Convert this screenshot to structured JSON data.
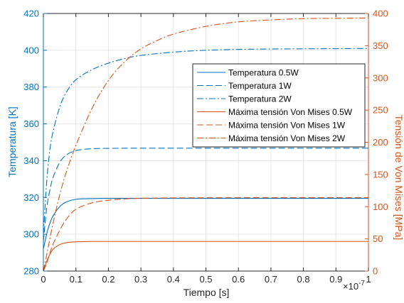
{
  "colors": {
    "left_axis": "#0072BD",
    "right_axis": "#D95319",
    "grid": "#e6e6e6",
    "frame": "#262626"
  },
  "chart_data": {
    "type": "line",
    "xlabel": "Tiempo [s]",
    "x_exponent_label": "×10",
    "x_exponent_power": "-7",
    "ylabel_left": "Temperatura [K]",
    "ylabel_right": "Tensión de Von Mises [MPa]",
    "xlim": [
      0,
      1
    ],
    "ylim_left": [
      280,
      420
    ],
    "ylim_right": [
      0,
      400
    ],
    "x_ticks": [
      0,
      0.1,
      0.2,
      0.3,
      0.4,
      0.5,
      0.6,
      0.7,
      0.8,
      0.9,
      1
    ],
    "x_tick_labels": [
      "0",
      "0.1",
      "0.2",
      "0.3",
      "0.4",
      "0.5",
      "0.6",
      "0.7",
      "0.8",
      "0.9",
      "1"
    ],
    "y_left_ticks": [
      280,
      300,
      320,
      340,
      360,
      380,
      400,
      420
    ],
    "y_left_tick_labels": [
      "280",
      "300",
      "320",
      "340",
      "360",
      "380",
      "400",
      "420"
    ],
    "y_right_ticks": [
      0,
      50,
      100,
      150,
      200,
      250,
      300,
      350,
      400
    ],
    "y_right_tick_labels": [
      "0",
      "50",
      "100",
      "150",
      "200",
      "250",
      "300",
      "350",
      "400"
    ],
    "grid": true,
    "legend_position": "top-right",
    "series": [
      {
        "name": "Temperatura 0.5W",
        "axis": "left",
        "color": "#0072BD",
        "dash": "solid",
        "x": [
          0,
          0.01,
          0.02,
          0.03,
          0.05,
          0.07,
          0.1,
          0.15,
          0.2,
          0.3,
          0.5,
          0.7,
          1
        ],
        "y": [
          292,
          300,
          306,
          310,
          315,
          317.5,
          319,
          319.4,
          319.5,
          319.5,
          319.5,
          319.5,
          319.5
        ]
      },
      {
        "name": "Temperatura 1W",
        "axis": "left",
        "color": "#0072BD",
        "dash": "dash",
        "x": [
          0,
          0.01,
          0.02,
          0.03,
          0.05,
          0.07,
          0.1,
          0.15,
          0.2,
          0.3,
          0.5,
          0.7,
          1
        ],
        "y": [
          296,
          314,
          324,
          331,
          339,
          343,
          345.5,
          346.5,
          346.7,
          346.8,
          346.8,
          346.8,
          346.8
        ]
      },
      {
        "name": "Temperatura 2W",
        "axis": "left",
        "color": "#0072BD",
        "dash": "dashdot",
        "x": [
          0,
          0.01,
          0.02,
          0.03,
          0.05,
          0.07,
          0.1,
          0.15,
          0.2,
          0.25,
          0.3,
          0.4,
          0.5,
          0.6,
          0.7,
          0.8,
          0.9,
          1
        ],
        "y": [
          300,
          328,
          346,
          356,
          369,
          377,
          384,
          389.5,
          393,
          395.5,
          397.2,
          399,
          400,
          400.5,
          400.7,
          400.8,
          400.9,
          401
        ]
      },
      {
        "name": "Máxima tensión Von Mises 0.5W",
        "axis": "right",
        "color": "#D95319",
        "dash": "solid",
        "x": [
          0,
          0.01,
          0.02,
          0.03,
          0.05,
          0.07,
          0.1,
          0.15,
          0.2,
          0.5,
          1
        ],
        "y": [
          0,
          15,
          26,
          34,
          41,
          44,
          45.5,
          46,
          46,
          46,
          46
        ]
      },
      {
        "name": "Máxima tensión Von Mises 1W",
        "axis": "right",
        "color": "#D95319",
        "dash": "dash",
        "x": [
          0,
          0.01,
          0.02,
          0.03,
          0.05,
          0.07,
          0.1,
          0.15,
          0.2,
          0.25,
          0.3,
          0.4,
          0.5,
          0.7,
          1
        ],
        "y": [
          0,
          12,
          28,
          42,
          63,
          80,
          96,
          106,
          110,
          112,
          113,
          113.5,
          113.8,
          114,
          114
        ]
      },
      {
        "name": "Máxima tensión Von Mises 2W",
        "axis": "right",
        "color": "#D95319",
        "dash": "dashdot",
        "x": [
          0,
          0.01,
          0.02,
          0.03,
          0.05,
          0.07,
          0.1,
          0.15,
          0.2,
          0.25,
          0.3,
          0.35,
          0.4,
          0.5,
          0.6,
          0.7,
          0.8,
          0.9,
          1
        ],
        "y": [
          0,
          25,
          50,
          75,
          118,
          153,
          195,
          253,
          296,
          325,
          345,
          358,
          368,
          380,
          387,
          390,
          392,
          392.5,
          393
        ]
      }
    ]
  }
}
